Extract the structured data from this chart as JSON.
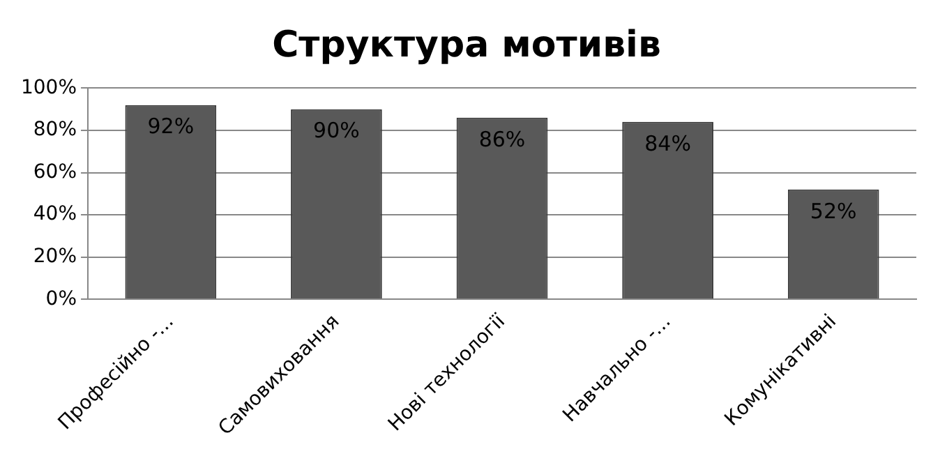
{
  "chart_data": {
    "type": "bar",
    "title": "Структура мотивів",
    "categories": [
      "Професійно -...",
      "Самовиховання",
      "Нові технології",
      "Навчально -...",
      "Комунікативні"
    ],
    "values": [
      92,
      90,
      86,
      84,
      52
    ],
    "value_labels": [
      "92%",
      "90%",
      "86%",
      "84%",
      "52%"
    ],
    "color": "#595959",
    "ylim": [
      0,
      100
    ],
    "yticks": [
      {
        "value": 0,
        "label": "0%"
      },
      {
        "value": 20,
        "label": "20%"
      },
      {
        "value": 40,
        "label": "40%"
      },
      {
        "value": 60,
        "label": "60%"
      },
      {
        "value": 80,
        "label": "80%"
      },
      {
        "value": 100,
        "label": "100%"
      }
    ],
    "grid": "y",
    "legend": false
  }
}
